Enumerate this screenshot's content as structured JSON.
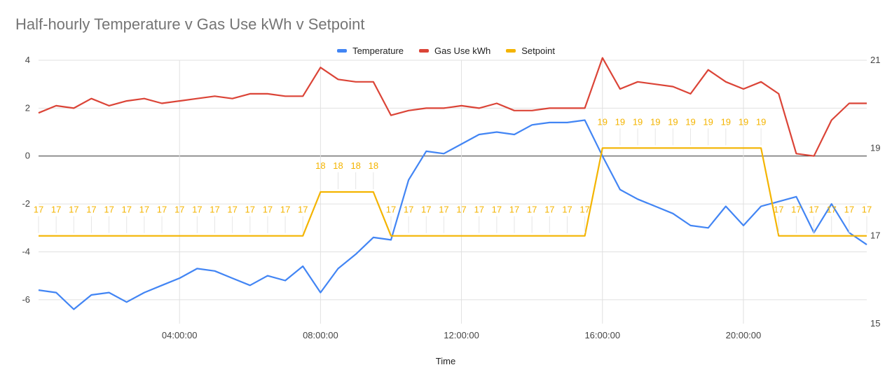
{
  "chart_data": {
    "type": "line",
    "title": "Half-hourly Temperature v Gas Use kWh v Setpoint",
    "xlabel": "Time",
    "x_ticks": [
      "04:00:00",
      "08:00:00",
      "12:00:00",
      "16:00:00",
      "20:00:00"
    ],
    "x_tick_hours": [
      4,
      8,
      12,
      16,
      20
    ],
    "x_range_hours": [
      0,
      23.5
    ],
    "x_step_hours": 0.5,
    "y_left": {
      "range": [
        -7,
        4
      ],
      "ticks": [
        -6,
        -4,
        -2,
        0,
        2,
        4
      ],
      "labels": [
        "-6",
        "-4",
        "-2",
        "0",
        "2",
        "4"
      ]
    },
    "y_right": {
      "range": [
        15,
        21
      ],
      "ticks": [
        15,
        17,
        19,
        21
      ],
      "labels": [
        "15",
        "17",
        "19",
        "21"
      ]
    },
    "grid": true,
    "legend_position": "top",
    "series": [
      {
        "name": "Temperature",
        "color": "#4285f4",
        "axis": "left",
        "values": [
          -5.6,
          -5.7,
          -6.4,
          -5.8,
          -5.7,
          -6.1,
          -5.7,
          -5.4,
          -5.1,
          -4.7,
          -4.8,
          -5.1,
          -5.4,
          -5.0,
          -5.2,
          -4.6,
          -5.7,
          -4.7,
          -4.1,
          -3.4,
          -3.5,
          -1.0,
          0.2,
          0.1,
          0.5,
          0.9,
          1.0,
          0.9,
          1.3,
          1.4,
          1.4,
          1.5,
          0.0,
          -1.4,
          -1.8,
          -2.1,
          -2.4,
          -2.9,
          -3.0,
          -2.1,
          -2.9,
          -2.1,
          -1.9,
          -1.7,
          -3.2,
          -2.0,
          -3.2,
          -3.7
        ]
      },
      {
        "name": "Gas Use kWh",
        "color": "#db4437",
        "axis": "left",
        "values": [
          1.8,
          2.1,
          2.0,
          2.4,
          2.1,
          2.3,
          2.4,
          2.2,
          2.3,
          2.4,
          2.5,
          2.4,
          2.6,
          2.6,
          2.5,
          2.5,
          3.7,
          3.2,
          3.1,
          3.1,
          1.7,
          1.9,
          2.0,
          2.0,
          2.1,
          2.0,
          2.2,
          1.9,
          1.9,
          2.0,
          2.0,
          2.0,
          4.1,
          2.8,
          3.1,
          3.0,
          2.9,
          2.6,
          3.6,
          3.1,
          2.8,
          3.1,
          2.6,
          0.1,
          0.0,
          1.5,
          2.2,
          2.2
        ]
      },
      {
        "name": "Setpoint",
        "color": "#f4b400",
        "axis": "right",
        "show_labels": true,
        "values": [
          17,
          17,
          17,
          17,
          17,
          17,
          17,
          17,
          17,
          17,
          17,
          17,
          17,
          17,
          17,
          17,
          18,
          18,
          18,
          18,
          17,
          17,
          17,
          17,
          17,
          17,
          17,
          17,
          17,
          17,
          17,
          17,
          19,
          19,
          19,
          19,
          19,
          19,
          19,
          19,
          19,
          19,
          17,
          17,
          17,
          17,
          17,
          17
        ]
      }
    ]
  }
}
